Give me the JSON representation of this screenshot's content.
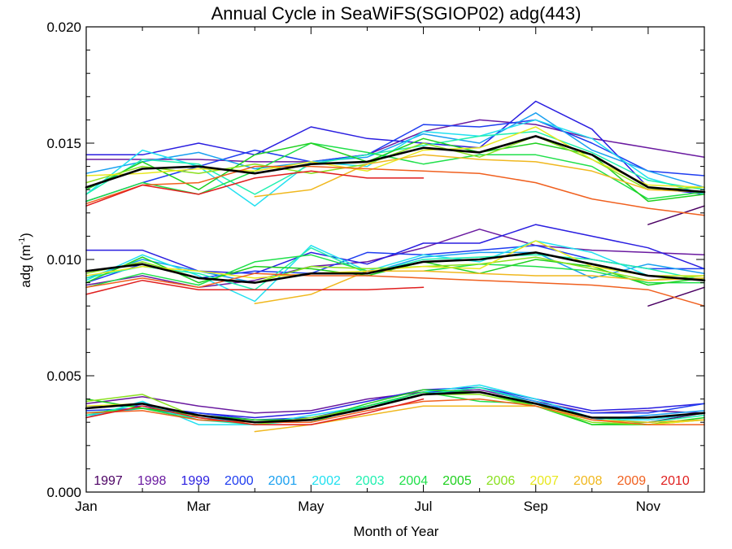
{
  "chart_data": {
    "type": "line",
    "title": "Annual Cycle in SeaWiFS(SGIOP02) adg(443)",
    "xlabel": "Month of Year",
    "ylabel_main": "adg (m",
    "ylabel_sup": "-1",
    "ylabel_end": ")",
    "xlim": [
      0,
      11
    ],
    "ylim": [
      0,
      0.02
    ],
    "x_tick_values": [
      0,
      2,
      4,
      6,
      8,
      10
    ],
    "x_tick_labels": [
      "Jan",
      "Mar",
      "May",
      "Jul",
      "Sep",
      "Nov"
    ],
    "y_tick_values": [
      0,
      0.005,
      0.01,
      0.015,
      0.02
    ],
    "y_tick_labels": [
      "0.000",
      "0.005",
      "0.010",
      "0.015",
      "0.020"
    ],
    "grid": false,
    "legend_position": "bottom-inside",
    "series": [
      {
        "name": "1997",
        "color": "#4b0063",
        "bands": {
          "upper": [
            null,
            null,
            null,
            null,
            null,
            null,
            null,
            null,
            null,
            null,
            0.0115,
            0.0123
          ],
          "middle": [
            null,
            null,
            null,
            null,
            null,
            null,
            null,
            null,
            null,
            null,
            0.008,
            0.0088
          ],
          "lower": [
            null,
            null,
            null,
            null,
            null,
            null,
            null,
            null,
            null,
            null,
            0.003,
            0.0034
          ]
        }
      },
      {
        "name": "1998",
        "color": "#6a1aa0",
        "bands": {
          "upper": [
            0.0143,
            0.0143,
            0.0143,
            0.0142,
            0.0142,
            0.0145,
            0.0155,
            0.016,
            0.0158,
            0.0152,
            0.0148,
            0.0144
          ],
          "middle": [
            0.0089,
            0.0093,
            0.0088,
            0.0091,
            0.0097,
            0.0099,
            0.0105,
            0.0113,
            0.0106,
            0.0104,
            0.0103,
            0.0102
          ],
          "lower": [
            0.0038,
            0.0041,
            0.0037,
            0.0034,
            0.0035,
            0.004,
            0.0043,
            0.0044,
            0.0039,
            0.0034,
            0.0035,
            0.0034
          ]
        }
      },
      {
        "name": "1999",
        "color": "#2a1ee0",
        "bands": {
          "upper": [
            0.0145,
            0.0145,
            0.015,
            0.0145,
            0.0157,
            0.0152,
            0.015,
            0.0148,
            0.0168,
            0.0156,
            0.0131,
            0.0128
          ],
          "middle": [
            0.0104,
            0.0104,
            0.0095,
            0.0094,
            0.0103,
            0.0098,
            0.0107,
            0.0107,
            0.0115,
            0.011,
            0.0105,
            0.0096
          ],
          "lower": [
            0.0037,
            0.0037,
            0.0034,
            0.0032,
            0.0034,
            0.0039,
            0.0044,
            0.0045,
            0.004,
            0.0035,
            0.0036,
            0.0038
          ]
        }
      },
      {
        "name": "2000",
        "color": "#1f3df0",
        "bands": {
          "upper": [
            0.0125,
            0.0133,
            0.014,
            0.0147,
            0.0142,
            0.0145,
            0.0158,
            0.0157,
            0.016,
            0.015,
            0.0138,
            0.0136
          ],
          "middle": [
            0.009,
            0.0098,
            0.0092,
            0.0095,
            0.0094,
            0.0103,
            0.0102,
            0.0104,
            0.0106,
            0.01,
            0.0096,
            0.0096
          ],
          "lower": [
            0.0035,
            0.0036,
            0.0034,
            0.0031,
            0.0032,
            0.0037,
            0.0043,
            0.0043,
            0.0038,
            0.0034,
            0.0034,
            0.0038
          ]
        }
      },
      {
        "name": "2001",
        "color": "#1aa0f0",
        "bands": {
          "upper": [
            0.0137,
            0.0142,
            0.0146,
            0.0139,
            0.0142,
            0.0144,
            0.0154,
            0.015,
            0.0163,
            0.0147,
            0.0138,
            0.0131
          ],
          "middle": [
            0.0092,
            0.01,
            0.0095,
            0.009,
            0.0094,
            0.0094,
            0.0101,
            0.0103,
            0.0103,
            0.0092,
            0.0098,
            0.0094
          ],
          "lower": [
            0.0033,
            0.0036,
            0.0032,
            0.003,
            0.0031,
            0.0036,
            0.0042,
            0.0045,
            0.0039,
            0.0031,
            0.0033,
            0.0035
          ]
        }
      },
      {
        "name": "2002",
        "color": "#22e0f0",
        "bands": {
          "upper": [
            0.0128,
            0.0147,
            0.014,
            0.0123,
            0.0142,
            0.014,
            0.0155,
            0.0153,
            0.016,
            0.0152,
            0.0135,
            0.0128
          ],
          "middle": [
            0.0091,
            0.0102,
            0.0093,
            0.0082,
            0.0106,
            0.0095,
            0.0102,
            0.0099,
            0.0108,
            0.0103,
            0.0093,
            0.0093
          ],
          "lower": [
            0.0032,
            0.0039,
            0.0029,
            0.0029,
            0.0033,
            0.0037,
            0.0043,
            0.0046,
            0.004,
            0.0032,
            0.0031,
            0.0034
          ]
        }
      },
      {
        "name": "2003",
        "color": "#1ff0b0",
        "bands": {
          "upper": [
            0.0128,
            0.0143,
            0.0141,
            0.0128,
            0.0141,
            0.0145,
            0.0149,
            0.0153,
            0.0155,
            0.0146,
            0.0134,
            0.013
          ],
          "middle": [
            0.0092,
            0.0097,
            0.0094,
            0.0087,
            0.0105,
            0.0094,
            0.01,
            0.0101,
            0.0102,
            0.01,
            0.0096,
            0.0091
          ],
          "lower": [
            0.0033,
            0.0038,
            0.0031,
            0.0029,
            0.0031,
            0.0037,
            0.0042,
            0.0045,
            0.0038,
            0.0032,
            0.003,
            0.0033
          ]
        }
      },
      {
        "name": "2004",
        "color": "#1fe04a",
        "bands": {
          "upper": [
            0.0125,
            0.0133,
            0.0128,
            0.0138,
            0.015,
            0.0146,
            0.0141,
            0.0145,
            0.0145,
            0.014,
            0.0126,
            0.0129
          ],
          "middle": [
            0.0088,
            0.0094,
            0.0089,
            0.0099,
            0.0102,
            0.0095,
            0.0095,
            0.0098,
            0.0097,
            0.0095,
            0.009,
            0.009
          ],
          "lower": [
            0.0034,
            0.0036,
            0.0031,
            0.003,
            0.003,
            0.0037,
            0.0043,
            0.0039,
            0.0038,
            0.0029,
            0.003,
            0.0031
          ]
        }
      },
      {
        "name": "2005",
        "color": "#1fd01f",
        "bands": {
          "upper": [
            0.013,
            0.0142,
            0.013,
            0.0145,
            0.015,
            0.0142,
            0.0152,
            0.0146,
            0.015,
            0.0145,
            0.0125,
            0.0128
          ],
          "middle": [
            0.009,
            0.0101,
            0.009,
            0.0097,
            0.0096,
            0.0093,
            0.0099,
            0.0094,
            0.01,
            0.0097,
            0.0089,
            0.0092
          ],
          "lower": [
            0.004,
            0.0036,
            0.0033,
            0.0031,
            0.0031,
            0.0038,
            0.0044,
            0.0043,
            0.0037,
            0.0029,
            0.0029,
            0.0032
          ]
        }
      },
      {
        "name": "2006",
        "color": "#8ae01f",
        "bands": {
          "upper": [
            0.0133,
            0.014,
            0.0137,
            0.0141,
            0.0137,
            0.0141,
            0.015,
            0.0144,
            0.0153,
            0.0143,
            0.013,
            0.0131
          ],
          "middle": [
            0.0094,
            0.0099,
            0.0092,
            0.009,
            0.0097,
            0.0096,
            0.0097,
            0.0098,
            0.0101,
            0.0096,
            0.0091,
            0.0093
          ],
          "lower": [
            0.0039,
            0.0042,
            0.0032,
            0.0029,
            0.0032,
            0.0036,
            0.0042,
            0.0042,
            0.0037,
            0.003,
            0.0029,
            0.0031
          ]
        }
      },
      {
        "name": "2007",
        "color": "#e8e81f",
        "bands": {
          "upper": [
            0.0136,
            0.0137,
            0.0139,
            0.0138,
            0.0142,
            0.0138,
            0.0147,
            0.0148,
            0.0157,
            0.0143,
            0.0132,
            0.0131
          ],
          "middle": [
            0.0093,
            0.0097,
            0.0095,
            0.0092,
            0.0094,
            0.0095,
            0.0097,
            0.0096,
            0.0108,
            0.0097,
            0.0093,
            0.0093
          ],
          "lower": [
            0.0037,
            0.0038,
            0.0033,
            0.003,
            0.0031,
            0.0036,
            0.0042,
            0.0043,
            0.0038,
            0.0031,
            0.0029,
            0.0031
          ]
        }
      },
      {
        "name": "2008",
        "color": "#f0b81f",
        "bands": {
          "upper": [
            null,
            null,
            null,
            0.0127,
            0.013,
            0.0141,
            0.0145,
            0.0143,
            0.0142,
            0.0138,
            0.013,
            0.0129
          ],
          "middle": [
            null,
            null,
            null,
            0.0081,
            0.0085,
            0.0095,
            0.0095,
            0.0094,
            0.0093,
            0.0093,
            0.0091,
            0.0092
          ],
          "lower": [
            null,
            null,
            null,
            0.0026,
            0.0029,
            0.0033,
            0.0037,
            0.0037,
            0.0037,
            0.0031,
            0.003,
            0.0031
          ]
        }
      },
      {
        "name": "2009",
        "color": "#f0601f",
        "bands": {
          "upper": [
            0.0124,
            0.0132,
            0.0133,
            0.014,
            0.014,
            0.0139,
            0.0138,
            0.0137,
            0.0133,
            0.0126,
            0.0122,
            0.0119
          ],
          "middle": [
            0.0088,
            0.0092,
            0.0088,
            0.0094,
            0.0093,
            0.0093,
            0.0092,
            0.0091,
            0.009,
            0.0089,
            0.0087,
            0.008
          ],
          "lower": [
            0.0034,
            0.0035,
            0.0031,
            0.003,
            0.003,
            0.0035,
            0.0039,
            0.004,
            0.0037,
            0.0031,
            0.0029,
            0.0029
          ]
        }
      },
      {
        "name": "2010",
        "color": "#e01f1f",
        "bands": {
          "upper": [
            0.0123,
            0.0132,
            0.0128,
            0.0135,
            0.0138,
            0.0135,
            0.0135,
            null,
            null,
            null,
            null,
            null
          ],
          "middle": [
            0.0085,
            0.0091,
            0.0087,
            0.0087,
            0.0087,
            0.0087,
            0.0088,
            null,
            null,
            null,
            null,
            null
          ],
          "lower": [
            0.0032,
            0.0037,
            0.0032,
            0.0029,
            0.0029,
            0.0034,
            0.004,
            null,
            null,
            null,
            null,
            null
          ]
        }
      },
      {
        "name": "",
        "color": "#000000",
        "role": "mean",
        "bands": {
          "upper": [
            0.0131,
            0.0139,
            0.014,
            0.0137,
            0.0141,
            0.0142,
            0.0148,
            0.0146,
            0.0153,
            0.0145,
            0.0131,
            0.0129
          ],
          "middle": [
            0.0095,
            0.0098,
            0.0092,
            0.009,
            0.0094,
            0.0094,
            0.0099,
            0.01,
            0.0103,
            0.0098,
            0.0093,
            0.0091
          ],
          "lower": [
            0.0036,
            0.0038,
            0.0033,
            0.003,
            0.0031,
            0.0036,
            0.0042,
            0.0043,
            0.0038,
            0.0032,
            0.0032,
            0.0034
          ]
        }
      }
    ]
  }
}
